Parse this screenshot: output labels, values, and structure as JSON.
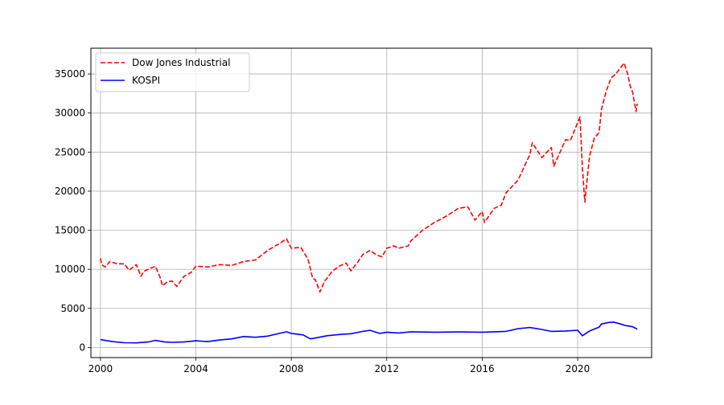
{
  "chart_data": {
    "type": "line",
    "title": "",
    "xlabel": "",
    "ylabel": "",
    "xlim": [
      1999.6,
      2023.1
    ],
    "ylim": [
      -1300,
      38300
    ],
    "x_ticks": [
      2000,
      2004,
      2008,
      2012,
      2016,
      2020
    ],
    "x_tick_labels": [
      "2000",
      "2004",
      "2008",
      "2012",
      "2016",
      "2020"
    ],
    "y_ticks": [
      0,
      5000,
      10000,
      15000,
      20000,
      25000,
      30000,
      35000
    ],
    "y_tick_labels": [
      "0",
      "5000",
      "10000",
      "15000",
      "20000",
      "25000",
      "30000",
      "35000"
    ],
    "grid": true,
    "legend_position": "top-left",
    "series": [
      {
        "name": "Dow Jones Industrial",
        "color": "#ff0000",
        "line_style": "dashed",
        "x": [
          2000.0,
          2000.05,
          2000.2,
          2000.4,
          2000.7,
          2001.0,
          2001.2,
          2001.5,
          2001.7,
          2001.8,
          2002.0,
          2002.3,
          2002.5,
          2002.6,
          2002.8,
          2003.0,
          2003.2,
          2003.5,
          2003.8,
          2004.0,
          2004.5,
          2005.0,
          2005.5,
          2006.0,
          2006.5,
          2007.0,
          2007.5,
          2007.8,
          2008.0,
          2008.4,
          2008.7,
          2008.9,
          2009.0,
          2009.2,
          2009.4,
          2009.7,
          2010.0,
          2010.3,
          2010.5,
          2010.8,
          2011.0,
          2011.3,
          2011.6,
          2011.8,
          2012.0,
          2012.3,
          2012.5,
          2012.9,
          2013.0,
          2013.5,
          2014.0,
          2014.5,
          2015.0,
          2015.4,
          2015.7,
          2016.0,
          2016.1,
          2016.5,
          2016.8,
          2017.0,
          2017.5,
          2018.0,
          2018.1,
          2018.5,
          2018.9,
          2019.0,
          2019.5,
          2019.7,
          2020.0,
          2020.1,
          2020.2,
          2020.3,
          2020.5,
          2020.7,
          2020.9,
          2021.0,
          2021.2,
          2021.4,
          2021.6,
          2021.8,
          2021.95,
          2022.1,
          2022.2,
          2022.3,
          2022.45,
          2022.5
        ],
        "values": [
          11400,
          10600,
          10300,
          11000,
          10700,
          10700,
          9900,
          10600,
          9100,
          9700,
          10000,
          10400,
          9000,
          7900,
          8400,
          8500,
          7800,
          9100,
          9600,
          10400,
          10300,
          10600,
          10500,
          11000,
          11200,
          12400,
          13300,
          13900,
          12700,
          12800,
          11300,
          8800,
          8700,
          7100,
          8500,
          9700,
          10400,
          10800,
          9800,
          11000,
          11900,
          12400,
          11800,
          11600,
          12700,
          13000,
          12700,
          13000,
          13600,
          15000,
          16000,
          16800,
          17800,
          18000,
          16300,
          17400,
          16000,
          17800,
          18200,
          19800,
          21400,
          24700,
          26200,
          24300,
          25600,
          23200,
          26600,
          26500,
          28800,
          29500,
          23000,
          18600,
          24500,
          26800,
          27500,
          30500,
          32800,
          34500,
          35000,
          35800,
          36400,
          35000,
          33500,
          32700,
          30200,
          31200
        ]
      },
      {
        "name": "KOSPI",
        "color": "#0000ff",
        "line_style": "solid",
        "x": [
          2000.0,
          2000.5,
          2001.0,
          2001.5,
          2002.0,
          2002.3,
          2002.7,
          2003.0,
          2003.5,
          2004.0,
          2004.5,
          2005.0,
          2005.5,
          2006.0,
          2006.5,
          2007.0,
          2007.5,
          2007.8,
          2008.0,
          2008.5,
          2008.8,
          2009.0,
          2009.5,
          2010.0,
          2010.5,
          2011.0,
          2011.3,
          2011.7,
          2012.0,
          2012.5,
          2013.0,
          2014.0,
          2015.0,
          2016.0,
          2016.5,
          2017.0,
          2017.5,
          2018.0,
          2018.5,
          2018.9,
          2019.5,
          2020.0,
          2020.2,
          2020.5,
          2020.9,
          2021.0,
          2021.3,
          2021.5,
          2021.8,
          2022.0,
          2022.3,
          2022.5
        ],
        "values": [
          1000,
          750,
          600,
          580,
          700,
          900,
          700,
          650,
          700,
          850,
          750,
          950,
          1100,
          1400,
          1300,
          1450,
          1800,
          2000,
          1800,
          1600,
          1100,
          1200,
          1500,
          1650,
          1750,
          2050,
          2200,
          1800,
          1950,
          1850,
          2000,
          1950,
          1980,
          1950,
          2000,
          2050,
          2400,
          2550,
          2300,
          2050,
          2100,
          2200,
          1500,
          2100,
          2600,
          3000,
          3200,
          3250,
          3000,
          2800,
          2650,
          2350
        ]
      }
    ]
  }
}
